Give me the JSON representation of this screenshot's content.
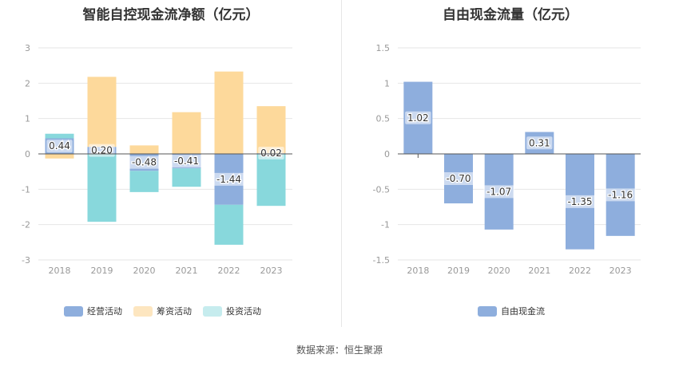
{
  "footer": {
    "source": "数据来源：恒生聚源"
  },
  "colors": {
    "operating": "#8eaedd",
    "financing": "#fdd99b",
    "investing": "#88d8dc",
    "free_cf": "#8eaedd",
    "grid": "#e6e6e6",
    "axis_label": "#999999",
    "data_label": "#333333"
  },
  "chart_data": [
    {
      "type": "bar",
      "stacked": true,
      "title": "智能自控现金流净额（亿元）",
      "categories": [
        "2018",
        "2019",
        "2020",
        "2021",
        "2022",
        "2023"
      ],
      "ylim": [
        -3,
        3
      ],
      "yticks": [
        -3,
        -2,
        -1,
        0,
        1,
        2,
        3
      ],
      "series": [
        {
          "name": "经营活动",
          "key": "operating",
          "values": [
            0.44,
            0.2,
            -0.48,
            -0.41,
            -1.44,
            0.02
          ]
        },
        {
          "name": "筹资活动",
          "key": "financing",
          "values": [
            -0.13,
            1.98,
            0.24,
            1.18,
            2.33,
            1.33
          ]
        },
        {
          "name": "投资活动",
          "key": "investing",
          "values": [
            0.13,
            -1.92,
            -0.6,
            -0.52,
            -1.13,
            -1.47
          ]
        }
      ],
      "data_labels": [
        "0.44",
        "0.20",
        "-0.48",
        "-0.41",
        "-1.44",
        "0.02"
      ],
      "legend_position": "bottom"
    },
    {
      "type": "bar",
      "title": "自由现金流量（亿元）",
      "categories": [
        "2018",
        "2019",
        "2020",
        "2021",
        "2022",
        "2023"
      ],
      "ylim": [
        -1.5,
        1.5
      ],
      "yticks": [
        "-1.5",
        "-1",
        "-0.5",
        "0",
        "0.5",
        "1",
        "1.5"
      ],
      "series": [
        {
          "name": "自由现金流",
          "key": "free_cf",
          "values": [
            1.02,
            -0.7,
            -1.07,
            0.31,
            -1.35,
            -1.16
          ]
        }
      ],
      "data_labels": [
        "1.02",
        "-0.70",
        "-1.07",
        "0.31",
        "-1.35",
        "-1.16"
      ],
      "legend_position": "bottom"
    }
  ]
}
